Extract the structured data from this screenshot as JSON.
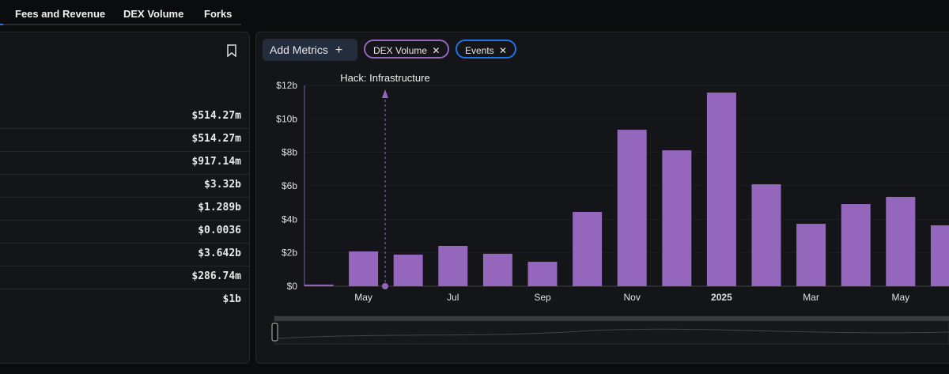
{
  "tabs": [
    "Fees and Revenue",
    "DEX Volume",
    "Forks"
  ],
  "stats": [
    "$514.27m",
    "$514.27m",
    "$917.14m",
    "$3.32b",
    "$1.289b",
    "$0.0036",
    "$3.642b",
    "$286.74m",
    "$1b"
  ],
  "toolbar": {
    "add_metrics": "Add Metrics",
    "chips": [
      "DEX Volume",
      "Events"
    ]
  },
  "chart_data": {
    "type": "bar",
    "categories": [
      null,
      "May",
      null,
      "Jul",
      null,
      "Sep",
      null,
      "Nov",
      null,
      "2025",
      null,
      "Mar",
      null,
      "May",
      null
    ],
    "series": [
      {
        "name": "DEX Volume",
        "color": "#9467bd",
        "values": [
          0.1,
          2.08,
          1.89,
          2.41,
          1.94,
          1.46,
          4.44,
          9.35,
          8.12,
          11.57,
          6.09,
          3.73,
          4.91,
          5.34,
          3.64
        ]
      }
    ],
    "ylim": [
      0,
      12
    ],
    "yticks": [
      {
        "value": 0,
        "label": "$0"
      },
      {
        "value": 2,
        "label": "$2b"
      },
      {
        "value": 4,
        "label": "$4b"
      },
      {
        "value": 6,
        "label": "$6b"
      },
      {
        "value": 8,
        "label": "$8b"
      },
      {
        "value": 10,
        "label": "$10b"
      },
      {
        "value": 12,
        "label": "$12b"
      }
    ],
    "annotations": [
      "Hack: Infrastructure"
    ]
  }
}
